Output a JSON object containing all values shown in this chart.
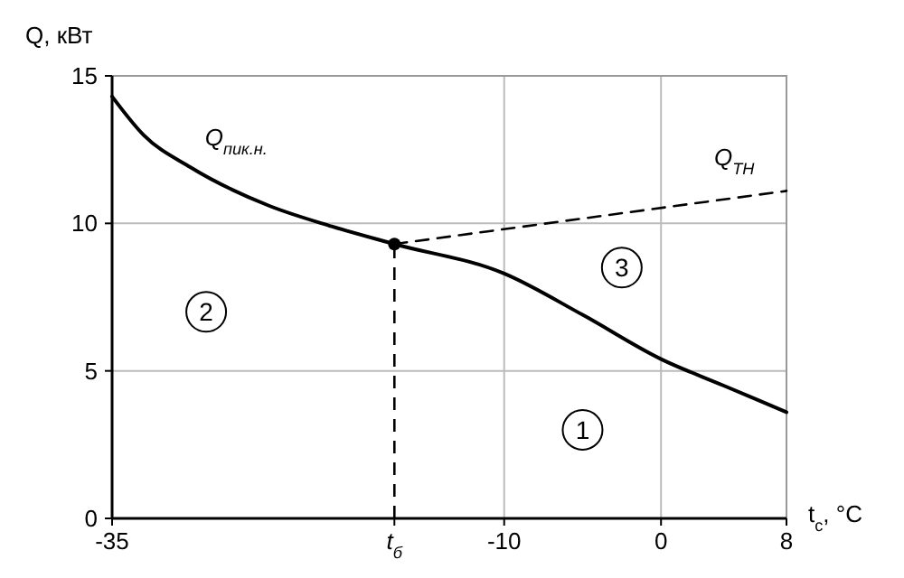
{
  "chart_data": {
    "type": "line",
    "xlabel": "t$_{с}$, °C",
    "ylabel": "Q, кВт",
    "xlim": [
      -35,
      8
    ],
    "ylim": [
      0,
      15
    ],
    "xticks": [
      -35,
      {
        "value": -17,
        "label": "t$_{б}$"
      },
      -10,
      0,
      8
    ],
    "yticks": [
      0,
      5,
      10,
      15
    ],
    "grid": true,
    "series": [
      {
        "name": "Q$_{пик.н.}$",
        "color": "#000000",
        "line_style": "solid",
        "x": [
          -35,
          -33,
          -30,
          -25,
          -21,
          -17,
          -10,
          -5,
          0,
          4,
          8
        ],
        "values": [
          14.3,
          13.0,
          11.9,
          10.6,
          9.9,
          9.3,
          8.3,
          6.9,
          5.4,
          4.5,
          3.6
        ]
      },
      {
        "name": "Q$_{TH}$",
        "color": "#000000",
        "line_style": "dashed",
        "x": [
          -17,
          8
        ],
        "values": [
          9.3,
          11.1
        ]
      },
      {
        "type": "scatter",
        "color": "#000000",
        "marker": "circle",
        "x": [
          -17
        ],
        "values": [
          9.3
        ]
      }
    ],
    "ref_lines": [
      {
        "axis": "x",
        "value": -17,
        "line_style": "dashed",
        "color": "#000000"
      }
    ],
    "annotations": [
      {
        "text": "1",
        "x": -5,
        "y": 3
      },
      {
        "text": "2",
        "x": -29,
        "y": 7
      },
      {
        "text": "3",
        "x": -2.5,
        "y": 8.5
      }
    ]
  }
}
